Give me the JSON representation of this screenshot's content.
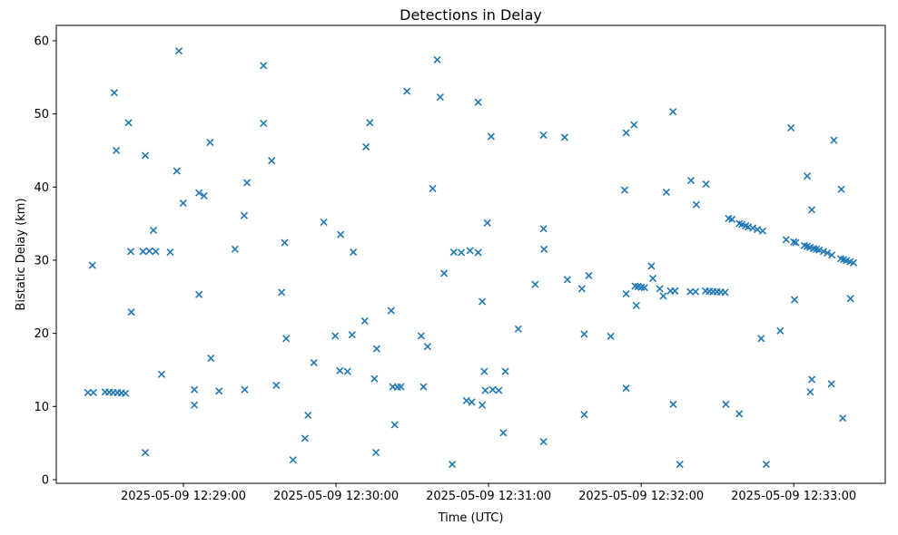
{
  "chart_data": {
    "type": "scatter",
    "title": "Detections in Delay",
    "xlabel": "Time (UTC)",
    "ylabel": "Bistatic Delay (km)",
    "date": "2025-05-09",
    "marker": "x",
    "marker_color": "#1f77b4",
    "axis_color": "#000000",
    "grid": false,
    "legend": null,
    "points_format": "[seconds_after_2025-05-09T12:29:00_UTC, bistatic_delay_km]",
    "x_axis": {
      "t_min": -50,
      "t_max": 276,
      "ticks": [
        {
          "t": 0,
          "label": "2025-05-09 12:29:00"
        },
        {
          "t": 60,
          "label": "2025-05-09 12:30:00"
        },
        {
          "t": 120,
          "label": "2025-05-09 12:31:00"
        },
        {
          "t": 180,
          "label": "2025-05-09 12:32:00"
        },
        {
          "t": 240,
          "label": "2025-05-09 12:33:00"
        }
      ]
    },
    "y_axis": {
      "min": -0.5,
      "max": 62.1,
      "ticks": [
        {
          "v": 0,
          "label": "0"
        },
        {
          "v": 10,
          "label": "10"
        },
        {
          "v": 20,
          "label": "20"
        },
        {
          "v": 30,
          "label": "30"
        },
        {
          "v": 40,
          "label": "40"
        },
        {
          "v": 50,
          "label": "50"
        },
        {
          "v": 60,
          "label": "60"
        }
      ]
    },
    "points": [
      [
        -1.8,
        58.6
      ],
      [
        -27.2,
        52.9
      ],
      [
        -21.6,
        48.8
      ],
      [
        10.5,
        46.1
      ],
      [
        -26.4,
        45.0
      ],
      [
        -15.0,
        44.3
      ],
      [
        -2.6,
        42.2
      ],
      [
        25.0,
        40.6
      ],
      [
        6.1,
        39.2
      ],
      [
        8.1,
        38.8
      ],
      [
        -0.1,
        37.8
      ],
      [
        23.9,
        36.1
      ],
      [
        -11.8,
        34.1
      ],
      [
        -20.7,
        31.2
      ],
      [
        -15.9,
        31.2
      ],
      [
        -13.4,
        31.25
      ],
      [
        -10.9,
        31.2
      ],
      [
        -5.2,
        31.1
      ],
      [
        20.3,
        31.5
      ],
      [
        -35.8,
        29.3
      ],
      [
        6.1,
        25.3
      ],
      [
        -20.5,
        22.9
      ],
      [
        10.8,
        16.6
      ],
      [
        -8.6,
        14.4
      ],
      [
        -37.6,
        11.9
      ],
      [
        -35.4,
        11.9
      ],
      [
        -30.8,
        12.0
      ],
      [
        -29.2,
        11.95
      ],
      [
        -27.6,
        11.9
      ],
      [
        -26.0,
        11.9
      ],
      [
        -24.4,
        11.85
      ],
      [
        -22.8,
        11.8
      ],
      [
        4.3,
        12.3
      ],
      [
        14.0,
        12.1
      ],
      [
        24.1,
        12.3
      ],
      [
        4.3,
        10.2
      ],
      [
        -15.0,
        3.7
      ],
      [
        31.5,
        56.6
      ],
      [
        99.8,
        57.4
      ],
      [
        87.9,
        53.1
      ],
      [
        101.0,
        52.3
      ],
      [
        31.5,
        48.7
      ],
      [
        73.3,
        48.8
      ],
      [
        71.8,
        45.5
      ],
      [
        34.7,
        43.6
      ],
      [
        98.0,
        39.8
      ],
      [
        55.2,
        35.2
      ],
      [
        61.8,
        33.5
      ],
      [
        39.8,
        32.4
      ],
      [
        66.8,
        31.1
      ],
      [
        106.3,
        31.1
      ],
      [
        109.3,
        31.05
      ],
      [
        115.9,
        51.6
      ],
      [
        192.5,
        50.3
      ],
      [
        177.2,
        48.5
      ],
      [
        174.1,
        47.4
      ],
      [
        121.0,
        46.9
      ],
      [
        141.6,
        47.1
      ],
      [
        149.9,
        46.8
      ],
      [
        173.5,
        39.6
      ],
      [
        189.9,
        39.3
      ],
      [
        119.5,
        35.1
      ],
      [
        141.6,
        34.3
      ],
      [
        141.8,
        31.5
      ],
      [
        112.7,
        31.3
      ],
      [
        115.9,
        31.05
      ],
      [
        238.9,
        48.1
      ],
      [
        255.8,
        46.4
      ],
      [
        199.6,
        40.9
      ],
      [
        205.5,
        40.4
      ],
      [
        245.3,
        41.5
      ],
      [
        258.7,
        39.7
      ],
      [
        201.7,
        37.6
      ],
      [
        247.1,
        36.9
      ],
      [
        214.4,
        35.7
      ],
      [
        215.7,
        35.6
      ],
      [
        218.6,
        35.0
      ],
      [
        219.6,
        34.9
      ],
      [
        221.1,
        34.7
      ],
      [
        222.1,
        34.55
      ],
      [
        223.9,
        34.4
      ],
      [
        225.7,
        34.2
      ],
      [
        227.8,
        34.0
      ],
      [
        237.0,
        32.8
      ],
      [
        240.0,
        32.5
      ],
      [
        240.8,
        32.4
      ],
      [
        244.2,
        32.0
      ],
      [
        245.3,
        31.9
      ],
      [
        246.4,
        31.75
      ],
      [
        247.8,
        31.6
      ],
      [
        248.9,
        31.5
      ],
      [
        250.0,
        31.4
      ],
      [
        251.7,
        31.2
      ],
      [
        253.2,
        31.0
      ],
      [
        255.0,
        30.7
      ],
      [
        258.5,
        30.2
      ],
      [
        259.6,
        30.1
      ],
      [
        260.7,
        29.95
      ],
      [
        262.1,
        29.8
      ],
      [
        263.5,
        29.65
      ],
      [
        184.0,
        29.2
      ],
      [
        159.4,
        27.9
      ],
      [
        151.0,
        27.35
      ],
      [
        138.3,
        26.7
      ],
      [
        156.7,
        26.1
      ],
      [
        184.6,
        27.5
      ],
      [
        177.6,
        26.45
      ],
      [
        178.8,
        26.4
      ],
      [
        180.1,
        26.3
      ],
      [
        181.3,
        26.25
      ],
      [
        174.1,
        25.4
      ],
      [
        187.3,
        26.1
      ],
      [
        188.7,
        25.1
      ],
      [
        191.5,
        25.8
      ],
      [
        193.3,
        25.8
      ],
      [
        178.1,
        23.8
      ],
      [
        117.5,
        24.35
      ],
      [
        131.7,
        20.6
      ],
      [
        157.6,
        19.9
      ],
      [
        168.0,
        19.6
      ],
      [
        118.3,
        14.8
      ],
      [
        126.6,
        14.8
      ],
      [
        118.7,
        12.2
      ],
      [
        121.6,
        12.3
      ],
      [
        124.0,
        12.2
      ],
      [
        111.3,
        10.8
      ],
      [
        113.4,
        10.6
      ],
      [
        117.5,
        10.2
      ],
      [
        174.1,
        12.5
      ],
      [
        192.6,
        10.3
      ],
      [
        157.6,
        8.9
      ],
      [
        125.8,
        6.4
      ],
      [
        141.6,
        5.2
      ],
      [
        102.5,
        28.2
      ],
      [
        38.6,
        25.6
      ],
      [
        81.7,
        23.1
      ],
      [
        71.3,
        21.7
      ],
      [
        59.7,
        19.65
      ],
      [
        66.3,
        19.8
      ],
      [
        40.4,
        19.3
      ],
      [
        93.5,
        19.65
      ],
      [
        96.0,
        18.2
      ],
      [
        76.0,
        17.9
      ],
      [
        51.3,
        16.0
      ],
      [
        61.5,
        14.9
      ],
      [
        64.5,
        14.8
      ],
      [
        75.1,
        13.8
      ],
      [
        82.3,
        12.7
      ],
      [
        84.2,
        12.65
      ],
      [
        85.5,
        12.7
      ],
      [
        94.4,
        12.7
      ],
      [
        36.5,
        12.9
      ],
      [
        49.0,
        8.8
      ],
      [
        83.1,
        7.5
      ],
      [
        47.8,
        5.65
      ],
      [
        75.7,
        3.7
      ],
      [
        43.1,
        2.7
      ],
      [
        105.7,
        2.1
      ],
      [
        199.3,
        25.7
      ],
      [
        201.4,
        25.7
      ],
      [
        205.3,
        25.8
      ],
      [
        206.8,
        25.75
      ],
      [
        208.3,
        25.7
      ],
      [
        209.8,
        25.7
      ],
      [
        211.3,
        25.65
      ],
      [
        213.0,
        25.6
      ],
      [
        240.3,
        24.6
      ],
      [
        262.3,
        24.75
      ],
      [
        234.7,
        20.35
      ],
      [
        227.2,
        19.3
      ],
      [
        247.1,
        13.7
      ],
      [
        254.8,
        13.1
      ],
      [
        246.5,
        12.0
      ],
      [
        213.3,
        10.3
      ],
      [
        218.6,
        9.0
      ],
      [
        259.3,
        8.4
      ],
      [
        195.2,
        2.1
      ],
      [
        229.2,
        2.1
      ]
    ]
  }
}
